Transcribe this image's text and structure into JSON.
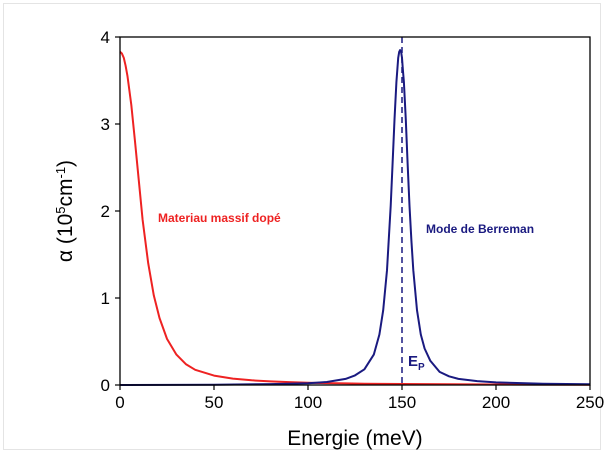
{
  "chart_data": {
    "type": "line",
    "xlabel": "Energie (meV)",
    "ylabel": {
      "base": "α (10",
      "exp1": "5",
      "mid": "cm",
      "exp2": "-1",
      "end": ")"
    },
    "xlim": [
      0,
      250
    ],
    "ylim": [
      0,
      4
    ],
    "xticks": [
      0,
      50,
      100,
      150,
      200,
      250
    ],
    "yticks": [
      0,
      1,
      2,
      3,
      4
    ],
    "grid": false,
    "series": [
      {
        "name": "Materiau massif dopé",
        "color": "#ee2222",
        "x": [
          0,
          1,
          2,
          3,
          4,
          6,
          8,
          10,
          12,
          15,
          18,
          21,
          25,
          30,
          35,
          40,
          50,
          60,
          70,
          80,
          90,
          100,
          110,
          120,
          130,
          140,
          150,
          175,
          200,
          225,
          250
        ],
        "y": [
          3.83,
          3.81,
          3.76,
          3.67,
          3.55,
          3.22,
          2.8,
          2.35,
          1.9,
          1.4,
          1.03,
          0.77,
          0.53,
          0.35,
          0.24,
          0.175,
          0.108,
          0.074,
          0.054,
          0.041,
          0.033,
          0.027,
          0.022,
          0.018,
          0.015,
          0.013,
          0.011,
          0.008,
          0.006,
          0.005,
          0.004
        ]
      },
      {
        "name": "Mode de Berreman",
        "color": "#1a1a80",
        "x": [
          0,
          50,
          80,
          100,
          110,
          120,
          125,
          130,
          135,
          138,
          140,
          142,
          144,
          145,
          146,
          147,
          148,
          148.5,
          149,
          149.5,
          150,
          150.5,
          151,
          152,
          153,
          154,
          155,
          156,
          158,
          160,
          162,
          165,
          170,
          175,
          180,
          190,
          200,
          225,
          250
        ],
        "y": [
          0,
          0.002,
          0.01,
          0.02,
          0.035,
          0.07,
          0.11,
          0.18,
          0.35,
          0.58,
          0.86,
          1.32,
          2.06,
          2.55,
          3.05,
          3.48,
          3.76,
          3.83,
          3.85,
          3.83,
          3.76,
          3.62,
          3.48,
          3.05,
          2.55,
          2.06,
          1.66,
          1.32,
          0.86,
          0.58,
          0.42,
          0.28,
          0.15,
          0.1,
          0.07,
          0.045,
          0.03,
          0.015,
          0.009
        ]
      }
    ],
    "annotations": [
      {
        "text": "Materiau massif dopé",
        "color": "#ee2222"
      },
      {
        "text": "Mode de Berreman",
        "color": "#1a1a80"
      }
    ],
    "marker": {
      "x": 150,
      "label": "E",
      "sub": "P",
      "color": "#1a1a80"
    }
  }
}
